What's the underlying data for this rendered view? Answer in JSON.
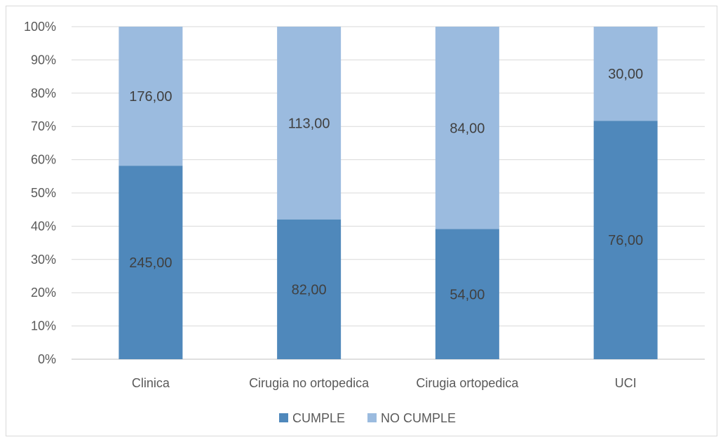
{
  "chart_data": {
    "type": "bar",
    "stacked": "percent",
    "categories": [
      "Clinica",
      "Cirugia no ortopedica",
      "Cirugia ortopedica",
      "UCI"
    ],
    "series": [
      {
        "name": "CUMPLE",
        "values": [
          245,
          82,
          54,
          76
        ],
        "labels": [
          "245,00",
          "82,00",
          "54,00",
          "76,00"
        ],
        "color": "#4f88bb"
      },
      {
        "name": "NO CUMPLE",
        "values": [
          176,
          113,
          84,
          30
        ],
        "labels": [
          "176,00",
          "113,00",
          "84,00",
          "30,00"
        ],
        "color": "#9bbbdf"
      }
    ],
    "yticks": [
      "0%",
      "10%",
      "20%",
      "30%",
      "40%",
      "50%",
      "60%",
      "70%",
      "80%",
      "90%",
      "100%"
    ],
    "ylim": [
      0,
      100
    ],
    "grid": true,
    "legend_position": "bottom-center"
  }
}
